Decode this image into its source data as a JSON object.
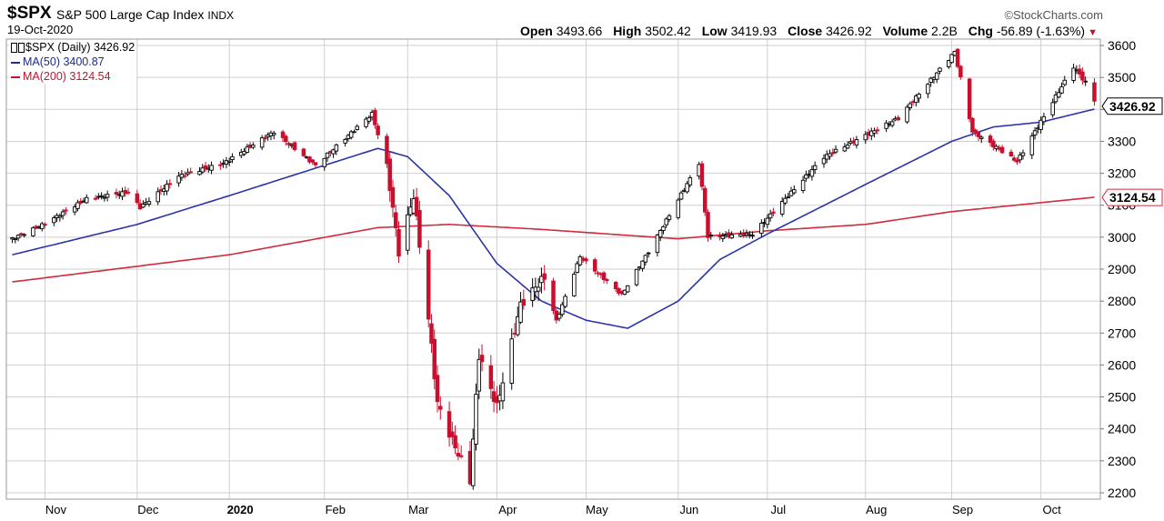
{
  "header": {
    "symbol": "$SPX",
    "name": "S&P 500 Large Cap Index",
    "exchange": "INDX",
    "date": "19-Oct-2020",
    "brand": "©StockCharts.com",
    "open_label": "Open",
    "open": "3493.66",
    "high_label": "High",
    "high": "3502.42",
    "low_label": "Low",
    "low": "3419.93",
    "close_label": "Close",
    "close": "3426.92",
    "volume_label": "Volume",
    "volume": "2.2B",
    "chg_label": "Chg",
    "chg": "-56.89 (-1.63%)"
  },
  "legend": {
    "price": "$SPX (Daily) 3426.92",
    "ma50": "MA(50) 3400.87",
    "ma200": "MA(200) 3124.54"
  },
  "colors": {
    "up": "#000000",
    "down": "#c8102e",
    "ma50": "#2b34a8",
    "ma200": "#d12a3c",
    "grid": "#cfcfcf"
  },
  "chart_data": {
    "type": "candlestick",
    "y_axis_side": "right",
    "ylim": [
      2180,
      3620
    ],
    "yticks": [
      2200,
      2300,
      2400,
      2500,
      2600,
      2700,
      2800,
      2900,
      3000,
      3100,
      3200,
      3300,
      3400,
      3500,
      3600
    ],
    "xticks": [
      {
        "label": "Nov",
        "date": "2019-11-01"
      },
      {
        "label": "Dec",
        "date": "2019-12-02"
      },
      {
        "label": "2020",
        "date": "2020-01-02"
      },
      {
        "label": "Feb",
        "date": "2020-02-03"
      },
      {
        "label": "Mar",
        "date": "2020-03-02"
      },
      {
        "label": "Apr",
        "date": "2020-04-01"
      },
      {
        "label": "May",
        "date": "2020-05-01"
      },
      {
        "label": "Jun",
        "date": "2020-06-01"
      },
      {
        "label": "Jul",
        "date": "2020-07-01"
      },
      {
        "label": "Aug",
        "date": "2020-08-03"
      },
      {
        "label": "Sep",
        "date": "2020-09-01"
      },
      {
        "label": "Oct",
        "date": "2020-10-01"
      }
    ],
    "price_label": "3426.92",
    "ma200_label": "3124.54",
    "grid": true,
    "close_anchors": [
      [
        "2019-10-21",
        2995
      ],
      [
        "2019-10-31",
        3038
      ],
      [
        "2019-11-15",
        3120
      ],
      [
        "2019-11-29",
        3141
      ],
      [
        "2019-12-03",
        3093
      ],
      [
        "2019-12-16",
        3191
      ],
      [
        "2019-12-31",
        3231
      ],
      [
        "2020-01-17",
        3330
      ],
      [
        "2020-01-31",
        3225
      ],
      [
        "2020-02-19",
        3386
      ],
      [
        "2020-02-24",
        3226
      ],
      [
        "2020-02-28",
        2954
      ],
      [
        "2020-03-04",
        3130
      ],
      [
        "2020-03-09",
        2746
      ],
      [
        "2020-03-12",
        2480
      ],
      [
        "2020-03-16",
        2386
      ],
      [
        "2020-03-23",
        2237
      ],
      [
        "2020-03-26",
        2630
      ],
      [
        "2020-04-01",
        2470
      ],
      [
        "2020-04-09",
        2789
      ],
      [
        "2020-04-17",
        2875
      ],
      [
        "2020-04-21",
        2737
      ],
      [
        "2020-04-29",
        2939
      ],
      [
        "2020-05-13",
        2820
      ],
      [
        "2020-05-22",
        2955
      ],
      [
        "2020-06-08",
        3232
      ],
      [
        "2020-06-11",
        3002
      ],
      [
        "2020-06-26",
        3009
      ],
      [
        "2020-07-20",
        3251
      ],
      [
        "2020-08-14",
        3372
      ],
      [
        "2020-09-02",
        3580
      ],
      [
        "2020-09-08",
        3331
      ],
      [
        "2020-09-23",
        3237
      ],
      [
        "2020-10-12",
        3534
      ],
      [
        "2020-10-16",
        3484
      ],
      [
        "2020-10-19",
        3427
      ]
    ],
    "ma50_anchors": [
      [
        "2019-10-21",
        2945
      ],
      [
        "2019-12-02",
        3040
      ],
      [
        "2020-01-02",
        3130
      ],
      [
        "2020-02-03",
        3225
      ],
      [
        "2020-02-21",
        3278
      ],
      [
        "2020-03-02",
        3252
      ],
      [
        "2020-03-16",
        3130
      ],
      [
        "2020-04-01",
        2918
      ],
      [
        "2020-04-16",
        2800
      ],
      [
        "2020-05-01",
        2740
      ],
      [
        "2020-05-15",
        2715
      ],
      [
        "2020-06-01",
        2800
      ],
      [
        "2020-06-15",
        2930
      ],
      [
        "2020-07-01",
        3010
      ],
      [
        "2020-08-03",
        3165
      ],
      [
        "2020-09-01",
        3300
      ],
      [
        "2020-09-15",
        3345
      ],
      [
        "2020-10-01",
        3360
      ],
      [
        "2020-10-19",
        3401
      ]
    ],
    "ma200_anchors": [
      [
        "2019-10-21",
        2860
      ],
      [
        "2020-01-02",
        2945
      ],
      [
        "2020-02-21",
        3030
      ],
      [
        "2020-03-16",
        3040
      ],
      [
        "2020-04-15",
        3025
      ],
      [
        "2020-06-01",
        2995
      ],
      [
        "2020-07-01",
        3020
      ],
      [
        "2020-08-03",
        3040
      ],
      [
        "2020-09-01",
        3080
      ],
      [
        "2020-10-19",
        3125
      ]
    ]
  }
}
